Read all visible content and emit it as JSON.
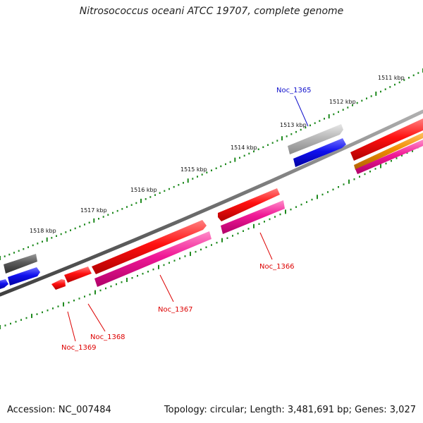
{
  "title": "Nitrosococcus oceani ATCC 19707, complete genome",
  "footer": {
    "accession": "Accession: NC_007484",
    "summary": "Topology: circular; Length: 3,481,691 bp; Genes: 3,027"
  },
  "colors": {
    "backbone": "#7a7a7a",
    "tick": "#1f8a1f",
    "red": "#ee0000",
    "magenta": "#ee1493",
    "blue": "#1111ee",
    "gray": "#aaaaaa",
    "darkgray": "#555555",
    "orange": "#f08c00"
  },
  "kbp_labels": [
    "1511 kbp",
    "1512 kbp",
    "1513 kbp",
    "1514 kbp",
    "1515 kbp",
    "1516 kbp",
    "1517 kbp",
    "1518 kbp"
  ],
  "gene_labels": [
    {
      "name": "Noc_1365",
      "color": "#1010cc"
    },
    {
      "name": "Noc_1366",
      "color": "#dd0000"
    },
    {
      "name": "Noc_1367",
      "color": "#dd0000"
    },
    {
      "name": "Noc_1368",
      "color": "#dd0000"
    },
    {
      "name": "Noc_1369",
      "color": "#dd0000"
    }
  ]
}
